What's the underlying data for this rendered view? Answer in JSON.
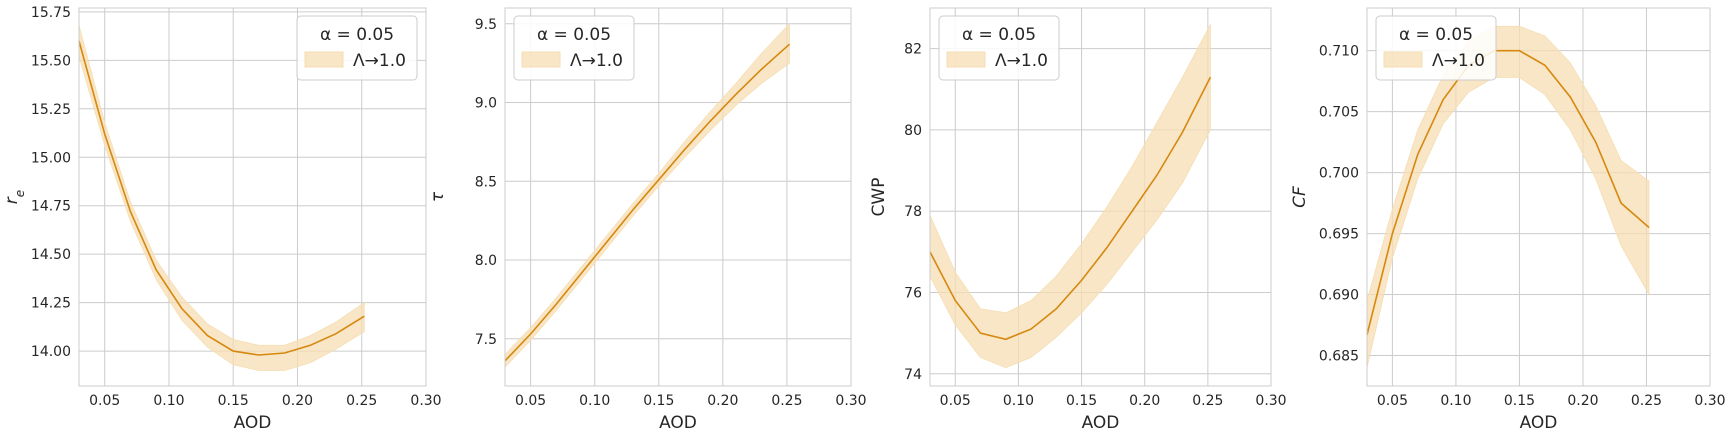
{
  "colors": {
    "line": "#d6880f",
    "band": "#f5deb3",
    "grid": "#cccccc",
    "frame": "#cccccc",
    "text": "#262626"
  },
  "chart_data": [
    {
      "type": "line",
      "xlabel": "AOD",
      "ylabel": "r",
      "ylabel_sub": "e",
      "xlim": [
        0.03,
        0.3
      ],
      "ylim": [
        13.82,
        15.77
      ],
      "xticks": [
        0.05,
        0.1,
        0.15,
        0.2,
        0.25,
        0.3
      ],
      "yticks": [
        14.0,
        14.25,
        14.5,
        14.75,
        15.0,
        15.25,
        15.5,
        15.75
      ],
      "grid": true,
      "legend": {
        "title": "α = 0.05",
        "entry": "Λ→1.0",
        "placement": "top-right"
      },
      "series": [
        {
          "x": [
            0.03,
            0.05,
            0.07,
            0.09,
            0.11,
            0.13,
            0.15,
            0.17,
            0.19,
            0.21,
            0.23,
            0.252
          ],
          "y": [
            15.6,
            15.12,
            14.72,
            14.42,
            14.22,
            14.08,
            14.0,
            13.98,
            13.99,
            14.03,
            14.09,
            14.18
          ],
          "lower": [
            15.52,
            15.06,
            14.67,
            14.37,
            14.16,
            14.02,
            13.93,
            13.9,
            13.9,
            13.94,
            14.01,
            14.1
          ],
          "upper": [
            15.68,
            15.18,
            14.77,
            14.47,
            14.28,
            14.14,
            14.06,
            14.03,
            14.03,
            14.08,
            14.15,
            14.25
          ]
        }
      ]
    },
    {
      "type": "line",
      "xlabel": "AOD",
      "ylabel": "τ",
      "ylabel_sub": "",
      "xlim": [
        0.03,
        0.3
      ],
      "ylim": [
        7.2,
        9.6
      ],
      "xticks": [
        0.05,
        0.1,
        0.15,
        0.2,
        0.25,
        0.3
      ],
      "yticks": [
        7.5,
        8.0,
        8.5,
        9.0,
        9.5
      ],
      "grid": true,
      "legend": {
        "title": "α = 0.05",
        "entry": "Λ→1.0",
        "placement": "top-left"
      },
      "series": [
        {
          "x": [
            0.03,
            0.05,
            0.07,
            0.09,
            0.11,
            0.13,
            0.15,
            0.17,
            0.19,
            0.21,
            0.23,
            0.252
          ],
          "y": [
            7.36,
            7.53,
            7.72,
            7.92,
            8.12,
            8.32,
            8.51,
            8.7,
            8.88,
            9.05,
            9.21,
            9.37
          ],
          "lower": [
            7.32,
            7.49,
            7.68,
            7.88,
            8.08,
            8.28,
            8.47,
            8.65,
            8.82,
            8.98,
            9.12,
            9.25
          ],
          "upper": [
            7.4,
            7.57,
            7.76,
            7.96,
            8.16,
            8.36,
            8.55,
            8.75,
            8.94,
            9.12,
            9.31,
            9.5
          ]
        }
      ]
    },
    {
      "type": "line",
      "xlabel": "AOD",
      "ylabel": "CWP",
      "ylabel_sub": "",
      "xlim": [
        0.03,
        0.3
      ],
      "ylim": [
        73.7,
        83.0
      ],
      "xticks": [
        0.05,
        0.1,
        0.15,
        0.2,
        0.25,
        0.3
      ],
      "yticks": [
        74,
        76,
        78,
        80,
        82
      ],
      "grid": true,
      "legend": {
        "title": "α = 0.05",
        "entry": "Λ→1.0",
        "placement": "top-left"
      },
      "series": [
        {
          "x": [
            0.03,
            0.05,
            0.07,
            0.09,
            0.11,
            0.13,
            0.15,
            0.17,
            0.19,
            0.21,
            0.23,
            0.252
          ],
          "y": [
            77.0,
            75.8,
            75.0,
            74.85,
            75.1,
            75.6,
            76.3,
            77.1,
            78.0,
            78.9,
            79.95,
            81.3
          ],
          "lower": [
            76.4,
            75.2,
            74.4,
            74.15,
            74.4,
            74.9,
            75.5,
            76.2,
            77.0,
            77.8,
            78.7,
            80.0
          ],
          "upper": [
            77.9,
            76.5,
            75.6,
            75.5,
            75.8,
            76.4,
            77.2,
            78.1,
            79.1,
            80.2,
            81.3,
            82.6
          ]
        }
      ]
    },
    {
      "type": "line",
      "xlabel": "AOD",
      "ylabel": "CF",
      "ylabel_sub": "",
      "xlim": [
        0.03,
        0.3
      ],
      "ylim": [
        0.6825,
        0.7135
      ],
      "xticks": [
        0.05,
        0.1,
        0.15,
        0.2,
        0.25,
        0.3
      ],
      "yticks": [
        0.685,
        0.69,
        0.695,
        0.7,
        0.705,
        0.71
      ],
      "grid": true,
      "legend": {
        "title": "α = 0.05",
        "entry": "Λ→1.0",
        "placement": "top-left"
      },
      "series": [
        {
          "x": [
            0.03,
            0.05,
            0.07,
            0.09,
            0.11,
            0.13,
            0.15,
            0.17,
            0.19,
            0.21,
            0.23,
            0.252
          ],
          "y": [
            0.6867,
            0.695,
            0.7015,
            0.706,
            0.7088,
            0.71,
            0.71,
            0.7088,
            0.7062,
            0.7025,
            0.6975,
            0.6955
          ],
          "lower": [
            0.684,
            0.693,
            0.6995,
            0.704,
            0.7066,
            0.7078,
            0.7078,
            0.7064,
            0.7035,
            0.6995,
            0.694,
            0.69
          ],
          "upper": [
            0.6895,
            0.697,
            0.7035,
            0.708,
            0.7108,
            0.712,
            0.712,
            0.7112,
            0.709,
            0.7055,
            0.701,
            0.6993
          ]
        }
      ]
    }
  ]
}
